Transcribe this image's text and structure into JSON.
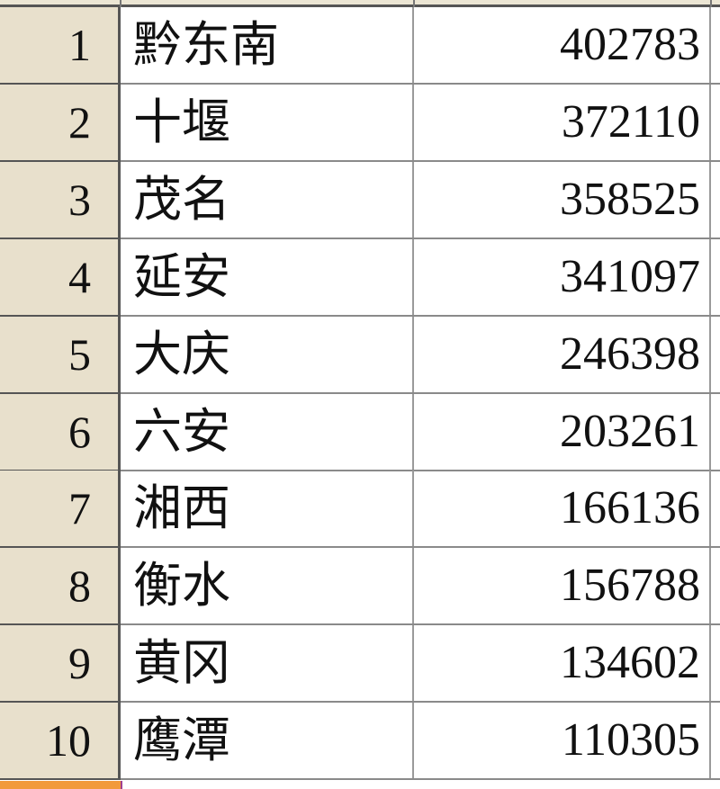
{
  "rows": [
    {
      "n": "1",
      "name": "黔东南",
      "value": "402783"
    },
    {
      "n": "2",
      "name": "十堰",
      "value": "372110"
    },
    {
      "n": "3",
      "name": "茂名",
      "value": "358525"
    },
    {
      "n": "4",
      "name": "延安",
      "value": "341097"
    },
    {
      "n": "5",
      "name": "大庆",
      "value": "246398"
    },
    {
      "n": "6",
      "name": "六安",
      "value": "203261"
    },
    {
      "n": "7",
      "name": "湘西",
      "value": "166136"
    },
    {
      "n": "8",
      "name": "衡水",
      "value": "156788"
    },
    {
      "n": "9",
      "name": "黄冈",
      "value": "134602"
    },
    {
      "n": "10",
      "name": "鹰潭",
      "value": "110305"
    }
  ],
  "colors": {
    "row_header": "#e8e0cc",
    "selection_accent": "#f29a3c"
  }
}
